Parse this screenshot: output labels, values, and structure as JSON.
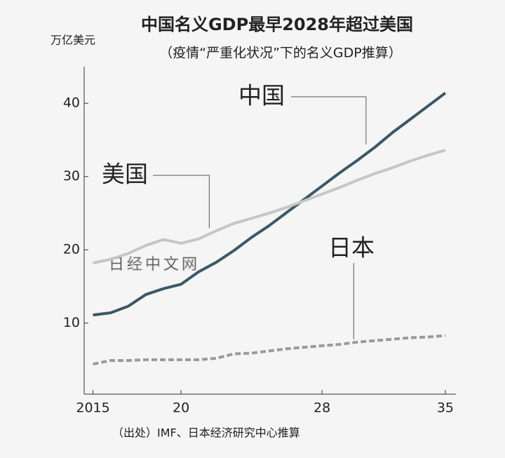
{
  "chart_data": {
    "type": "line",
    "title": "中国名义GDP最早2028年超过美国",
    "subtitle": "（疫情“严重化状况”下的名义GDP推算）",
    "y_label": "万亿美元",
    "source": "（出处）IMF、日本经济研究中心推算",
    "watermark": "日经中文网",
    "x": [
      2015,
      2016,
      2017,
      2018,
      2019,
      2020,
      2021,
      2022,
      2023,
      2024,
      2025,
      2026,
      2027,
      2028,
      2029,
      2030,
      2031,
      2032,
      2033,
      2034,
      2035
    ],
    "xlim": [
      2014.5,
      2035.6
    ],
    "xticks": [
      2015,
      {
        "value": 2020,
        "label": "20"
      },
      {
        "value": 2028,
        "label": "28"
      },
      {
        "value": 2035,
        "label": "35"
      }
    ],
    "ylim": [
      0.3,
      45
    ],
    "yticks": [
      10,
      20,
      30,
      40
    ],
    "series": [
      {
        "name": "中国",
        "color": "#3d5766",
        "dashed": false,
        "values": [
          11.1,
          11.4,
          12.3,
          13.9,
          14.7,
          15.3,
          17.0,
          18.3,
          19.9,
          21.7,
          23.3,
          25.1,
          26.9,
          28.7,
          30.5,
          32.2,
          34.0,
          36.0,
          37.8,
          39.6,
          41.4
        ]
      },
      {
        "name": "美国",
        "color": "#c6c6c6",
        "dashed": false,
        "values": [
          18.2,
          18.7,
          19.5,
          20.6,
          21.4,
          20.9,
          21.5,
          22.6,
          23.6,
          24.3,
          25.0,
          25.8,
          26.7,
          27.6,
          28.5,
          29.5,
          30.4,
          31.2,
          32.1,
          32.9,
          33.6
        ]
      },
      {
        "name": "日本",
        "color": "#9a9a9a",
        "dashed": true,
        "values": [
          4.4,
          4.9,
          4.9,
          5.0,
          5.0,
          5.0,
          5.0,
          5.2,
          5.8,
          5.9,
          6.2,
          6.5,
          6.7,
          6.9,
          7.1,
          7.4,
          7.6,
          7.8,
          8.0,
          8.1,
          8.3
        ]
      }
    ]
  }
}
